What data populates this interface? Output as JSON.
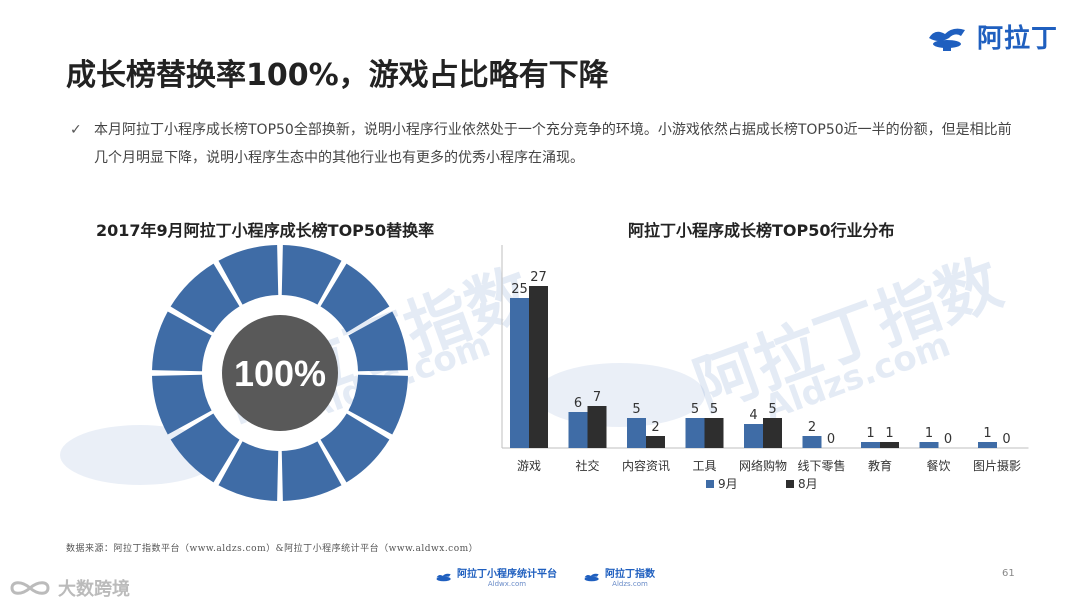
{
  "header": {
    "logo_text": "阿拉丁",
    "title": "成长榜替换率100%，游戏占比略有下降"
  },
  "summary": {
    "check": "✓",
    "text": "本月阿拉丁小程序成长榜TOP50全部换新，说明小程序行业依然处于一个充分竞争的环境。小游戏依然占据成长榜TOP50近一半的份额，但是相比前几个月明显下降，说明小程序生态中的其他行业也有更多的优秀小程序在涌现。"
  },
  "chart_data": [
    {
      "type": "pie",
      "title": "2017年9月阿拉丁小程序成长榜TOP50替换率",
      "center_label": "100%",
      "segments": 12,
      "values": [
        100
      ],
      "colors": {
        "ring": "#3f6ca6",
        "center": "#595959"
      }
    },
    {
      "type": "bar",
      "title": "阿拉丁小程序成长榜TOP50行业分布",
      "categories": [
        "游戏",
        "社交",
        "内容资讯",
        "工具",
        "网络购物",
        "线下零售",
        "教育",
        "餐饮",
        "图片摄影"
      ],
      "series": [
        {
          "name": "9月",
          "values": [
            25,
            6,
            5,
            5,
            4,
            2,
            1,
            1,
            1
          ],
          "color": "#3f6ca6"
        },
        {
          "name": "8月",
          "values": [
            27,
            7,
            2,
            5,
            5,
            0,
            1,
            0,
            0
          ],
          "color": "#2e2e2e"
        }
      ],
      "ylim": [
        0,
        30
      ],
      "legend": "bottom"
    }
  ],
  "watermark": {
    "brand": "阿拉丁指数",
    "domain": "Aldzs.com"
  },
  "footer": {
    "source": "数据来源：阿拉丁指数平台（www.aldzs.com）&阿拉丁小程序统计平台（www.aldwx.com）",
    "logo1_name": "阿拉丁小程序统计平台",
    "logo1_domain": "Aldwx.com",
    "logo2_name": "阿拉丁指数",
    "logo2_domain": "Aldzs.com",
    "page_number": "61",
    "brand_tag": "大数跨境"
  }
}
